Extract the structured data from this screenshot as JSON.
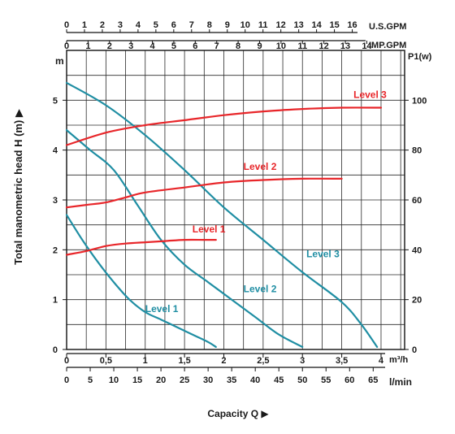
{
  "chart_data": {
    "type": "line",
    "ylabel": "Total manometric head H (m) ▶",
    "xlabel": "Capacity Q ▶",
    "left_axis_unit": "m",
    "right_axis_unit": "P1(w)",
    "ylim": [
      0,
      6
    ],
    "y_ticks": [
      "0",
      "1",
      "2",
      "3",
      "4",
      "5"
    ],
    "y2lim": [
      0,
      120
    ],
    "y2_ticks": [
      "0",
      "20",
      "40",
      "60",
      "80",
      "100"
    ],
    "xlim_m3h": [
      0,
      4.3
    ],
    "x_ticks_m3h": [
      "0",
      "0,5",
      "1",
      "1,5",
      "2",
      "2,5",
      "3",
      "3,5",
      "4"
    ],
    "x_unit_m3h": "m³/h",
    "x_ticks_lmin": [
      "0",
      "5",
      "10",
      "15",
      "20",
      "25",
      "30",
      "35",
      "40",
      "45",
      "50",
      "55",
      "60",
      "65"
    ],
    "x_unit_lmin": "l/min",
    "x_ticks_usgpm": [
      "0",
      "1",
      "2",
      "3",
      "4",
      "5",
      "6",
      "7",
      "8",
      "9",
      "10",
      "11",
      "12",
      "13",
      "14",
      "15",
      "16"
    ],
    "x_unit_usgpm": "U.S.GPM",
    "x_ticks_impgpm": [
      "0",
      "1",
      "2",
      "3",
      "4",
      "5",
      "6",
      "7",
      "8",
      "9",
      "10",
      "11",
      "12",
      "13",
      "14"
    ],
    "x_unit_impgpm": "IMP.GPM",
    "grid": true,
    "colors": {
      "head": "#1f8ea3",
      "power": "#e8262a",
      "grid": "#2a2a2a"
    },
    "series": [
      {
        "name": "Level 1",
        "kind": "head",
        "axis": "left",
        "x": [
          0,
          0.2,
          0.4,
          0.6,
          0.8,
          1.0,
          1.2,
          1.4,
          1.6,
          1.8,
          1.9
        ],
        "y": [
          2.7,
          2.2,
          1.75,
          1.35,
          1.0,
          0.75,
          0.6,
          0.45,
          0.3,
          0.15,
          0.05
        ]
      },
      {
        "name": "Level 2",
        "kind": "head",
        "axis": "left",
        "x": [
          0,
          0.3,
          0.6,
          0.9,
          1.2,
          1.5,
          1.8,
          2.1,
          2.4,
          2.7,
          3.0
        ],
        "y": [
          4.4,
          4.0,
          3.6,
          2.9,
          2.2,
          1.7,
          1.35,
          1.0,
          0.65,
          0.3,
          0.05
        ]
      },
      {
        "name": "Level 3",
        "kind": "head",
        "axis": "left",
        "x": [
          0,
          0.5,
          1.0,
          1.5,
          2.0,
          2.5,
          3.0,
          3.5,
          3.75,
          3.95
        ],
        "y": [
          5.35,
          4.9,
          4.3,
          3.6,
          2.85,
          2.2,
          1.55,
          0.95,
          0.5,
          0.05
        ]
      },
      {
        "name": "Level 1",
        "kind": "power",
        "axis": "right",
        "x": [
          0,
          0.25,
          0.5,
          0.75,
          1.0,
          1.25,
          1.5,
          1.75,
          1.9
        ],
        "y": [
          38,
          39.5,
          41.5,
          42.5,
          43,
          43.5,
          44,
          44,
          44
        ]
      },
      {
        "name": "Level 2",
        "kind": "power",
        "axis": "right",
        "x": [
          0,
          0.25,
          0.5,
          0.75,
          1.0,
          1.5,
          2.0,
          2.5,
          3.0,
          3.5
        ],
        "y": [
          57,
          58,
          59,
          61,
          63,
          65,
          67,
          68,
          68.5,
          68.5
        ]
      },
      {
        "name": "Level 3",
        "kind": "power",
        "axis": "right",
        "x": [
          0,
          0.5,
          1.0,
          1.5,
          2.0,
          2.5,
          3.0,
          3.5,
          4.0
        ],
        "y": [
          82,
          87,
          90,
          92,
          94,
          95.5,
          96.5,
          97,
          97
        ]
      }
    ],
    "labels": [
      {
        "text": "Level 1",
        "kind": "head",
        "x": 1.0,
        "y": 0.75
      },
      {
        "text": "Level 2",
        "kind": "head",
        "x": 2.25,
        "y": 1.15
      },
      {
        "text": "Level 3",
        "kind": "head",
        "x": 3.05,
        "y": 1.85
      },
      {
        "text": "Level 1",
        "kind": "power",
        "x": 1.6,
        "y": 2.35
      },
      {
        "text": "Level 2",
        "kind": "power",
        "x": 2.25,
        "y": 3.6
      },
      {
        "text": "Level 3",
        "kind": "power",
        "x": 3.65,
        "y": 5.05
      }
    ]
  }
}
